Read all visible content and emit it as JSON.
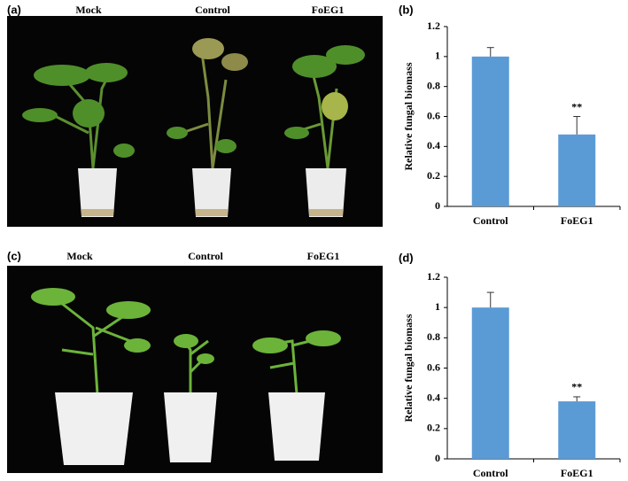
{
  "photos": [
    {
      "label": "(a)",
      "groups": [
        "Mock",
        "Control",
        "FoEG1"
      ]
    },
    {
      "label": "(c)",
      "groups": [
        "Mock",
        "Control",
        "FoEG1"
      ]
    }
  ],
  "chart_data": [
    {
      "type": "bar",
      "label": "(b)",
      "y_label": "Relative fungal biomass",
      "categories": [
        "Control",
        "FoEG1"
      ],
      "values": [
        1,
        0.48
      ],
      "errors": [
        0.06,
        0.12
      ],
      "annotations": [
        null,
        "**"
      ],
      "color": "#5b9bd5",
      "ylim": [
        0,
        1.2
      ],
      "yticks": [
        0,
        0.2,
        0.4,
        0.6,
        0.8,
        1,
        1.2
      ],
      "grid": false
    },
    {
      "type": "bar",
      "label": "(d)",
      "y_label": "Relative fungal biomass",
      "categories": [
        "Control",
        "FoEG1"
      ],
      "values": [
        1,
        0.38
      ],
      "errors": [
        0.1,
        0.03
      ],
      "annotations": [
        null,
        "**"
      ],
      "color": "#5b9bd5",
      "ylim": [
        0,
        1.2
      ],
      "yticks": [
        0,
        0.2,
        0.4,
        0.6,
        0.8,
        1,
        1.2
      ],
      "grid": false
    }
  ]
}
